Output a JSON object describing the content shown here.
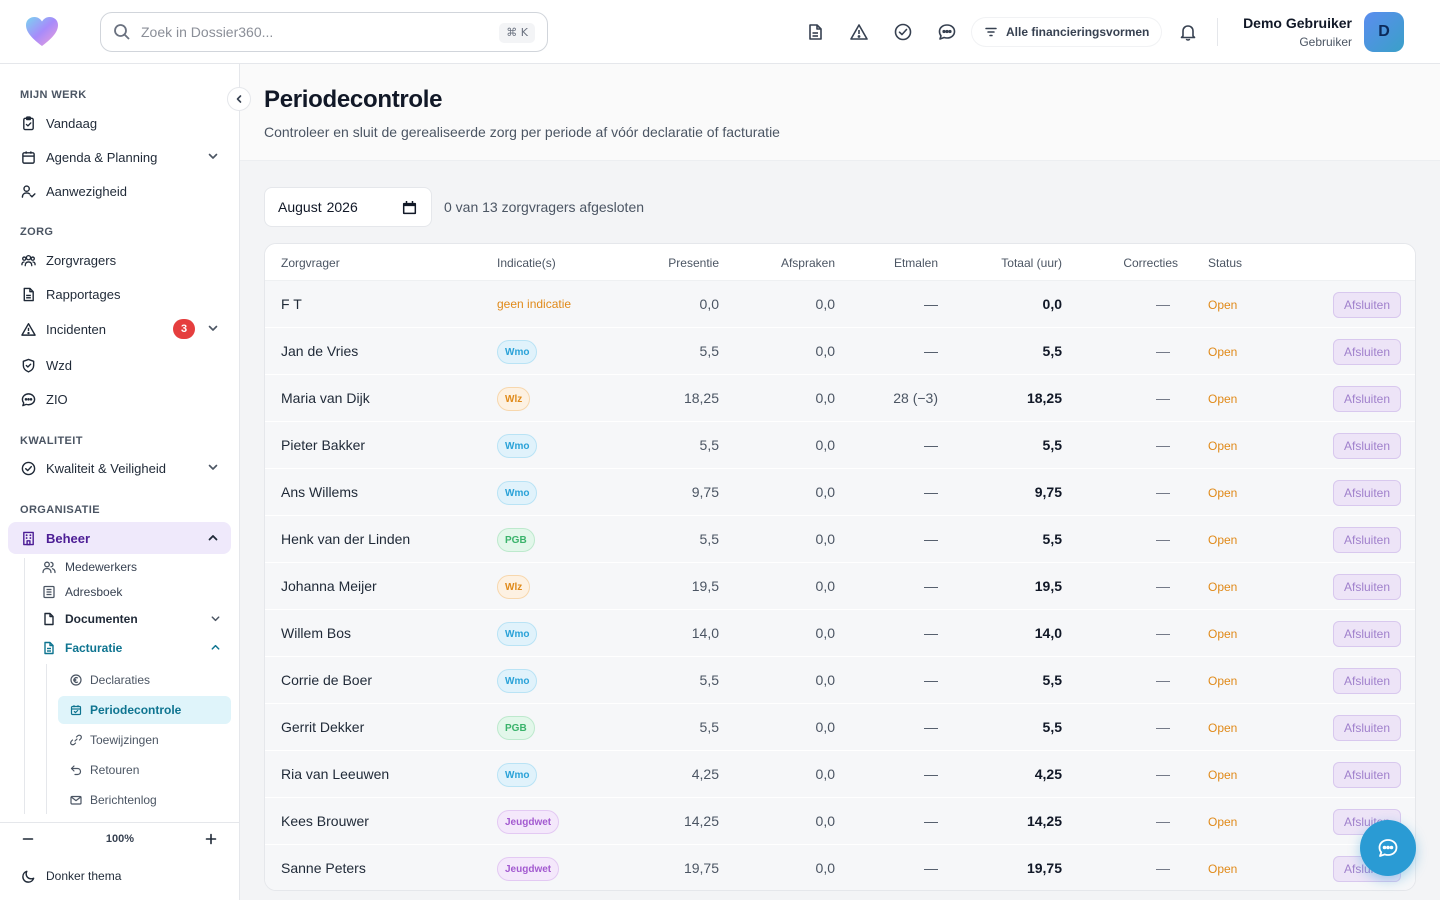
{
  "header": {
    "search_placeholder": "Zoek in Dossier360...",
    "search_shortcut": "⌘ K",
    "funding_filter": "Alle financieringsvormen",
    "user_name": "Demo Gebruiker",
    "user_role": "Gebruiker",
    "avatar_initial": "D"
  },
  "sidebar": {
    "sections": {
      "mijn_werk": "MIJN WERK",
      "zorg": "ZORG",
      "kwaliteit": "KWALITEIT",
      "organisatie": "ORGANISATIE"
    },
    "items": {
      "vandaag": "Vandaag",
      "agenda": "Agenda & Planning",
      "aanwezigheid": "Aanwezigheid",
      "zorgvragers": "Zorgvragers",
      "rapportages": "Rapportages",
      "incidenten": "Incidenten",
      "incidenten_badge": "3",
      "wzd": "Wzd",
      "zio": "ZIO",
      "kwaliteit": "Kwaliteit & Veiligheid",
      "beheer": "Beheer"
    },
    "beheer_sub": {
      "medewerkers": "Medewerkers",
      "adresboek": "Adresboek",
      "documenten": "Documenten",
      "facturatie": "Facturatie"
    },
    "facturatie_sub": {
      "declaraties": "Declaraties",
      "periodecontrole": "Periodecontrole",
      "toewijzingen": "Toewijzingen",
      "retouren": "Retouren",
      "berichtenlog": "Berichtenlog"
    },
    "zoom": "100%",
    "theme": "Donker thema"
  },
  "page": {
    "title": "Periodecontrole",
    "subtitle": "Controleer en sluit de gerealiseerde zorg per periode af vóór declaratie of facturatie",
    "month": "August",
    "year": "2026",
    "closed_summary": "0 van 13 zorgvragers afgesloten"
  },
  "table": {
    "columns": {
      "zorgvrager": "Zorgvrager",
      "indicaties": "Indicatie(s)",
      "presentie": "Presentie",
      "afspraken": "Afspraken",
      "etmalen": "Etmalen",
      "totaal": "Totaal (uur)",
      "correcties": "Correcties",
      "status": "Status"
    },
    "action_label": "Afsluiten",
    "rows": [
      {
        "name": "F T",
        "indicatie": "geen indicatie",
        "type": "none",
        "presentie": "0,0",
        "afspraken": "0,0",
        "etmalen": "—",
        "totaal": "0,0",
        "correcties": "—",
        "status": "Open"
      },
      {
        "name": "Jan de Vries",
        "indicatie": "Wmo",
        "type": "wmo",
        "presentie": "5,5",
        "afspraken": "0,0",
        "etmalen": "—",
        "totaal": "5,5",
        "correcties": "—",
        "status": "Open"
      },
      {
        "name": "Maria van Dijk",
        "indicatie": "Wlz",
        "type": "wlz",
        "presentie": "18,25",
        "afspraken": "0,0",
        "etmalen": "28 (−3)",
        "totaal": "18,25",
        "correcties": "—",
        "status": "Open"
      },
      {
        "name": "Pieter Bakker",
        "indicatie": "Wmo",
        "type": "wmo",
        "presentie": "5,5",
        "afspraken": "0,0",
        "etmalen": "—",
        "totaal": "5,5",
        "correcties": "—",
        "status": "Open"
      },
      {
        "name": "Ans Willems",
        "indicatie": "Wmo",
        "type": "wmo",
        "presentie": "9,75",
        "afspraken": "0,0",
        "etmalen": "—",
        "totaal": "9,75",
        "correcties": "—",
        "status": "Open"
      },
      {
        "name": "Henk van der Linden",
        "indicatie": "PGB",
        "type": "pgb",
        "presentie": "5,5",
        "afspraken": "0,0",
        "etmalen": "—",
        "totaal": "5,5",
        "correcties": "—",
        "status": "Open"
      },
      {
        "name": "Johanna Meijer",
        "indicatie": "Wlz",
        "type": "wlz",
        "presentie": "19,5",
        "afspraken": "0,0",
        "etmalen": "—",
        "totaal": "19,5",
        "correcties": "—",
        "status": "Open"
      },
      {
        "name": "Willem Bos",
        "indicatie": "Wmo",
        "type": "wmo",
        "presentie": "14,0",
        "afspraken": "0,0",
        "etmalen": "—",
        "totaal": "14,0",
        "correcties": "—",
        "status": "Open"
      },
      {
        "name": "Corrie de Boer",
        "indicatie": "Wmo",
        "type": "wmo",
        "presentie": "5,5",
        "afspraken": "0,0",
        "etmalen": "—",
        "totaal": "5,5",
        "correcties": "—",
        "status": "Open"
      },
      {
        "name": "Gerrit Dekker",
        "indicatie": "PGB",
        "type": "pgb",
        "presentie": "5,5",
        "afspraken": "0,0",
        "etmalen": "—",
        "totaal": "5,5",
        "correcties": "—",
        "status": "Open"
      },
      {
        "name": "Ria van Leeuwen",
        "indicatie": "Wmo",
        "type": "wmo",
        "presentie": "4,25",
        "afspraken": "0,0",
        "etmalen": "—",
        "totaal": "4,25",
        "correcties": "—",
        "status": "Open"
      },
      {
        "name": "Kees Brouwer",
        "indicatie": "Jeugdwet",
        "type": "jeugdwet",
        "presentie": "14,25",
        "afspraken": "0,0",
        "etmalen": "—",
        "totaal": "14,25",
        "correcties": "—",
        "status": "Open"
      },
      {
        "name": "Sanne Peters",
        "indicatie": "Jeugdwet",
        "type": "jeugdwet",
        "presentie": "19,75",
        "afspraken": "0,0",
        "etmalen": "—",
        "totaal": "19,75",
        "correcties": "—",
        "status": "Open"
      }
    ]
  },
  "colors": {
    "accent_purple": "#4c1d95",
    "accent_teal": "#0e7490",
    "status_open": "#e08a1a",
    "fab": "#2a9bd4"
  }
}
